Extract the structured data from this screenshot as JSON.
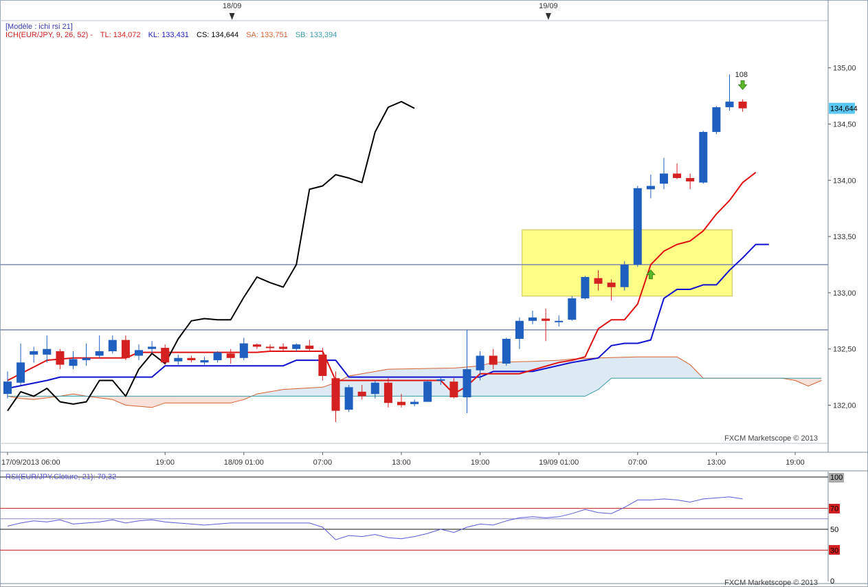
{
  "chart_data": {
    "type": "candlestick",
    "template_label": "[Modèle : ichi rsi 21]",
    "indicator": {
      "label": "ICH(EUR/JPY, 9, 26, 52) -",
      "tl": "TL: 134,072",
      "kl": "KL: 133,431",
      "cs": "CS: 134,644",
      "sa": "SA: 133,751",
      "sb": "SB: 133,394"
    },
    "rsi_label": "RSI(EUR/JPY.Cloture, 21): 79,32",
    "watermark": "FXCM Marketscope © 2013",
    "date_markers": [
      "18/09",
      "19/09"
    ],
    "x_ticks": [
      "17/09/2013 06:00",
      "19:00",
      "18/09 01:00",
      "07:00",
      "13:00",
      "19:00",
      "19/09 01:00",
      "07:00",
      "13:00",
      "19:00"
    ],
    "y_ticks": [
      "135,00",
      "134,50",
      "134,00",
      "133,50",
      "133,00",
      "132,50",
      "132,00"
    ],
    "ylim": [
      131.7,
      135.1
    ],
    "price_tag": "134,644",
    "annotation": "108",
    "rsi_ticks": [
      "100",
      "70",
      "50",
      "30",
      "0"
    ],
    "colors": {
      "up": "#1e5fbf",
      "down": "#d42020",
      "tenkan": "#e01010",
      "kijun": "#1010d0",
      "chikou": "#000000",
      "senkou_a": "#d86030",
      "senkou_b": "#3a9aa8",
      "cloud": "#dde9f3",
      "cloud_red": "#f8e1da",
      "highlight": "#ffff88",
      "rsi": "#5a5ad8"
    },
    "candles": [
      [
        132.1,
        132.3,
        132.06,
        132.21
      ],
      [
        132.2,
        132.55,
        132.18,
        132.38
      ],
      [
        132.45,
        132.52,
        132.38,
        132.48
      ],
      [
        132.45,
        132.62,
        132.38,
        132.5
      ],
      [
        132.48,
        132.5,
        132.32,
        132.36
      ],
      [
        132.35,
        132.48,
        132.32,
        132.41
      ],
      [
        132.4,
        132.55,
        132.35,
        132.42
      ],
      [
        132.44,
        132.62,
        132.42,
        132.48
      ],
      [
        132.48,
        132.62,
        132.46,
        132.58
      ],
      [
        132.58,
        132.62,
        132.4,
        132.42
      ],
      [
        132.44,
        132.54,
        132.4,
        132.49
      ],
      [
        132.5,
        132.57,
        132.46,
        132.52
      ],
      [
        132.51,
        132.54,
        132.36,
        132.38
      ],
      [
        132.39,
        132.45,
        132.36,
        132.42
      ],
      [
        132.42,
        132.44,
        132.38,
        132.4
      ],
      [
        132.38,
        132.43,
        132.36,
        132.4
      ],
      [
        132.4,
        132.48,
        132.38,
        132.47
      ],
      [
        132.46,
        132.5,
        132.37,
        132.42
      ],
      [
        132.42,
        132.6,
        132.4,
        132.55
      ],
      [
        132.54,
        132.55,
        132.5,
        132.52
      ],
      [
        132.52,
        132.54,
        132.48,
        132.51
      ],
      [
        132.52,
        132.55,
        132.48,
        132.5
      ],
      [
        132.5,
        132.55,
        132.48,
        132.54
      ],
      [
        132.53,
        132.58,
        132.48,
        132.5
      ],
      [
        132.45,
        132.51,
        132.22,
        132.26
      ],
      [
        132.24,
        132.3,
        131.85,
        131.95
      ],
      [
        131.96,
        132.18,
        131.94,
        132.16
      ],
      [
        132.12,
        132.18,
        132.05,
        132.08
      ],
      [
        132.1,
        132.22,
        132.06,
        132.2
      ],
      [
        132.2,
        132.24,
        131.98,
        132.02
      ],
      [
        132.03,
        132.1,
        131.98,
        132.0
      ],
      [
        132.01,
        132.05,
        131.99,
        132.03
      ],
      [
        132.03,
        132.22,
        132.03,
        132.21
      ],
      [
        132.22,
        132.25,
        132.18,
        132.23
      ],
      [
        132.21,
        132.24,
        132.06,
        132.07
      ],
      [
        132.07,
        132.67,
        131.93,
        132.32
      ],
      [
        132.31,
        132.48,
        132.22,
        132.44
      ],
      [
        132.44,
        132.5,
        132.32,
        132.36
      ],
      [
        132.37,
        132.6,
        132.35,
        132.59
      ],
      [
        132.59,
        132.78,
        132.5,
        132.75
      ],
      [
        132.75,
        132.84,
        132.72,
        132.78
      ],
      [
        132.77,
        132.86,
        132.57,
        132.75
      ],
      [
        132.74,
        132.8,
        132.7,
        132.75
      ],
      [
        132.76,
        132.97,
        132.75,
        132.95
      ],
      [
        132.95,
        133.15,
        132.94,
        133.14
      ],
      [
        133.13,
        133.2,
        133.02,
        133.08
      ],
      [
        133.09,
        133.12,
        132.93,
        133.05
      ],
      [
        133.05,
        133.28,
        133.02,
        133.25
      ],
      [
        133.25,
        133.95,
        133.23,
        133.93
      ],
      [
        133.92,
        134.05,
        133.84,
        133.95
      ],
      [
        133.97,
        134.2,
        133.92,
        134.06
      ],
      [
        134.06,
        134.15,
        134.01,
        134.02
      ],
      [
        134.02,
        134.06,
        133.92,
        133.99
      ],
      [
        133.98,
        134.44,
        133.97,
        134.43
      ],
      [
        134.43,
        134.66,
        134.41,
        134.65
      ],
      [
        134.65,
        134.94,
        134.62,
        134.7
      ],
      [
        134.7,
        134.72,
        134.61,
        134.64
      ]
    ],
    "tenkan": [
      [
        0,
        132.22
      ],
      [
        3,
        132.4
      ],
      [
        5,
        132.42
      ],
      [
        9,
        132.42
      ],
      [
        10,
        132.47
      ],
      [
        19,
        132.47
      ],
      [
        20,
        132.48
      ],
      [
        24,
        132.48
      ],
      [
        25,
        132.22
      ],
      [
        33,
        132.22
      ],
      [
        34,
        132.1
      ],
      [
        35,
        132.17
      ],
      [
        36,
        132.28
      ],
      [
        39,
        132.28
      ],
      [
        42,
        132.38
      ],
      [
        43,
        132.4
      ],
      [
        44,
        132.43
      ],
      [
        45,
        132.68
      ],
      [
        46,
        132.76
      ],
      [
        47,
        132.76
      ],
      [
        48,
        132.9
      ],
      [
        49,
        133.25
      ],
      [
        50,
        133.37
      ],
      [
        51,
        133.43
      ],
      [
        52,
        133.46
      ],
      [
        53,
        133.55
      ],
      [
        54,
        133.7
      ],
      [
        55,
        133.82
      ],
      [
        56,
        133.98
      ],
      [
        57,
        134.07
      ]
    ],
    "kijun": [
      [
        0,
        132.15
      ],
      [
        3,
        132.22
      ],
      [
        4,
        132.25
      ],
      [
        11,
        132.25
      ],
      [
        12,
        132.35
      ],
      [
        21,
        132.35
      ],
      [
        22,
        132.4
      ],
      [
        25,
        132.4
      ],
      [
        26,
        132.25
      ],
      [
        36,
        132.25
      ],
      [
        37,
        132.3
      ],
      [
        40,
        132.3
      ],
      [
        43,
        132.38
      ],
      [
        44,
        132.4
      ],
      [
        45,
        132.42
      ],
      [
        46,
        132.53
      ],
      [
        47,
        132.55
      ],
      [
        48,
        132.55
      ],
      [
        49,
        132.58
      ],
      [
        50,
        132.95
      ],
      [
        51,
        133.03
      ],
      [
        52,
        133.03
      ],
      [
        53,
        133.07
      ],
      [
        54,
        133.07
      ],
      [
        55,
        133.2
      ],
      [
        56,
        133.31
      ],
      [
        57,
        133.43
      ],
      [
        58,
        133.43
      ]
    ],
    "chikou": [
      [
        0,
        131.95
      ],
      [
        1,
        132.12
      ],
      [
        2,
        132.08
      ],
      [
        3,
        132.15
      ],
      [
        4,
        132.03
      ],
      [
        5,
        132.01
      ],
      [
        6,
        132.03
      ],
      [
        7,
        132.22
      ],
      [
        8,
        132.22
      ],
      [
        9,
        132.08
      ],
      [
        10,
        132.32
      ],
      [
        11,
        132.46
      ],
      [
        12,
        132.37
      ],
      [
        13,
        132.59
      ],
      [
        14,
        132.75
      ],
      [
        15,
        132.77
      ],
      [
        16,
        132.76
      ],
      [
        17,
        132.76
      ],
      [
        18,
        132.96
      ],
      [
        19,
        133.14
      ],
      [
        20,
        133.09
      ],
      [
        21,
        133.05
      ],
      [
        22,
        133.25
      ],
      [
        23,
        133.92
      ],
      [
        24,
        133.95
      ],
      [
        25,
        134.05
      ],
      [
        26,
        134.02
      ],
      [
        27,
        133.98
      ],
      [
        28,
        134.43
      ],
      [
        29,
        134.65
      ],
      [
        30,
        134.7
      ],
      [
        31,
        134.64
      ]
    ],
    "senkou_a": [
      [
        0,
        132.08
      ],
      [
        1,
        132.06
      ],
      [
        2,
        132.05
      ],
      [
        4,
        132.08
      ],
      [
        5,
        132.1
      ],
      [
        6,
        132.08
      ],
      [
        8,
        132.05
      ],
      [
        9,
        132.0
      ],
      [
        10,
        131.99
      ],
      [
        11,
        131.98
      ],
      [
        12,
        132.02
      ],
      [
        13,
        132.02
      ],
      [
        17,
        132.02
      ],
      [
        18,
        132.05
      ],
      [
        19,
        132.1
      ],
      [
        21,
        132.14
      ],
      [
        24,
        132.16
      ],
      [
        25,
        132.2
      ],
      [
        26,
        132.26
      ],
      [
        27,
        132.28
      ],
      [
        29,
        132.32
      ],
      [
        34,
        132.33
      ],
      [
        36,
        132.35
      ],
      [
        37,
        132.38
      ],
      [
        40,
        132.39
      ],
      [
        42,
        132.4
      ],
      [
        43,
        132.41
      ],
      [
        45,
        132.42
      ],
      [
        48,
        132.43
      ],
      [
        51,
        132.43
      ],
      [
        52,
        132.36
      ],
      [
        53,
        132.24
      ],
      [
        59,
        132.24
      ],
      [
        60,
        132.22
      ],
      [
        61,
        132.17
      ],
      [
        62,
        132.22
      ]
    ],
    "senkou_b": [
      [
        0,
        132.08
      ],
      [
        44,
        132.08
      ],
      [
        45,
        132.14
      ],
      [
        46,
        132.24
      ],
      [
        62,
        132.24
      ]
    ],
    "hlines": [
      133.25,
      132.67
    ],
    "highlight_box": {
      "x0": 39.2,
      "x1": 55.2,
      "y0": 132.97,
      "y1": 133.56
    },
    "arrows": [
      {
        "i": 49,
        "dir": "up",
        "price": 133.16
      },
      {
        "i": 56,
        "dir": "down",
        "price": 134.85
      }
    ],
    "rsi": [
      [
        0,
        53
      ],
      [
        1,
        56
      ],
      [
        2,
        58
      ],
      [
        3,
        57
      ],
      [
        4,
        59
      ],
      [
        5,
        55
      ],
      [
        6,
        56
      ],
      [
        7,
        57
      ],
      [
        8,
        59
      ],
      [
        9,
        56
      ],
      [
        10,
        58
      ],
      [
        11,
        59
      ],
      [
        12,
        57
      ],
      [
        13,
        56
      ],
      [
        14,
        55
      ],
      [
        15,
        54
      ],
      [
        16,
        55
      ],
      [
        17,
        56
      ],
      [
        18,
        56
      ],
      [
        19,
        56
      ],
      [
        20,
        56
      ],
      [
        21,
        56
      ],
      [
        22,
        56
      ],
      [
        23,
        56
      ],
      [
        24,
        52
      ],
      [
        25,
        40
      ],
      [
        26,
        44
      ],
      [
        27,
        43
      ],
      [
        28,
        45
      ],
      [
        29,
        42
      ],
      [
        30,
        41
      ],
      [
        31,
        43
      ],
      [
        32,
        46
      ],
      [
        33,
        50
      ],
      [
        34,
        47
      ],
      [
        35,
        52
      ],
      [
        36,
        55
      ],
      [
        37,
        54
      ],
      [
        38,
        58
      ],
      [
        39,
        61
      ],
      [
        40,
        62
      ],
      [
        41,
        61
      ],
      [
        42,
        62
      ],
      [
        43,
        65
      ],
      [
        44,
        69
      ],
      [
        45,
        66
      ],
      [
        46,
        65
      ],
      [
        47,
        71
      ],
      [
        48,
        78
      ],
      [
        49,
        78
      ],
      [
        50,
        79
      ],
      [
        51,
        78
      ],
      [
        52,
        76
      ],
      [
        53,
        79
      ],
      [
        54,
        80
      ],
      [
        55,
        81
      ],
      [
        56,
        79
      ]
    ]
  }
}
